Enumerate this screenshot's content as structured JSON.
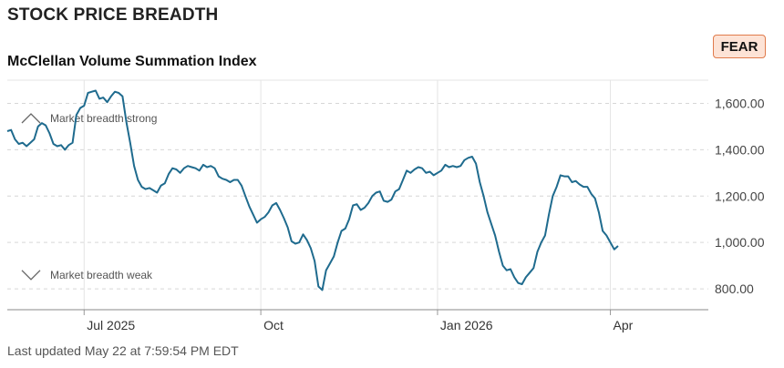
{
  "header": {
    "title": "STOCK PRICE BREADTH"
  },
  "badge": {
    "label": "FEAR",
    "border_color": "#e07b4c",
    "background": "#fde3d6"
  },
  "footer": {
    "updated": "Last updated May 22 at 7:59:54 PM EDT"
  },
  "chart_data": {
    "type": "line",
    "title": "McClellan Volume Summation Index",
    "xlabel": "",
    "ylabel": "",
    "ylim": [
      710,
      1700
    ],
    "y_ticks": [
      800,
      1000,
      1200,
      1400,
      1600
    ],
    "y_tick_labels": [
      "800.00",
      "1,000.00",
      "1,200.00",
      "1,400.00",
      "1,600.00"
    ],
    "x_ticks": [
      {
        "label": "Jul 2025",
        "date": "2025-07-01"
      },
      {
        "label": "Oct",
        "date": "2025-10-01"
      },
      {
        "label": "Jan 2026",
        "date": "2026-01-01"
      },
      {
        "label": "Apr",
        "date": "2026-04-01"
      }
    ],
    "xlim": [
      "2025-05-22",
      "2026-05-22"
    ],
    "grid": true,
    "line_color": "#1f6b8e",
    "annotations": [
      {
        "label": "Market breadth strong",
        "icon": "chevron-up-icon",
        "level": 1535
      },
      {
        "label": "Market breadth weak",
        "icon": "chevron-down-icon",
        "level": 860
      }
    ],
    "series": [
      {
        "points": [
          [
            "2025-05-22",
            1480
          ],
          [
            "2025-05-24",
            1485
          ],
          [
            "2025-05-26",
            1445
          ],
          [
            "2025-05-28",
            1425
          ],
          [
            "2025-05-30",
            1430
          ],
          [
            "2025-06-01",
            1415
          ],
          [
            "2025-06-03",
            1430
          ],
          [
            "2025-06-05",
            1445
          ],
          [
            "2025-06-07",
            1500
          ],
          [
            "2025-06-09",
            1515
          ],
          [
            "2025-06-11",
            1505
          ],
          [
            "2025-06-13",
            1470
          ],
          [
            "2025-06-15",
            1425
          ],
          [
            "2025-06-17",
            1415
          ],
          [
            "2025-06-19",
            1420
          ],
          [
            "2025-06-21",
            1400
          ],
          [
            "2025-06-23",
            1420
          ],
          [
            "2025-06-25",
            1430
          ],
          [
            "2025-06-27",
            1550
          ],
          [
            "2025-06-29",
            1580
          ],
          [
            "2025-07-01",
            1590
          ],
          [
            "2025-07-03",
            1645
          ],
          [
            "2025-07-05",
            1650
          ],
          [
            "2025-07-07",
            1655
          ],
          [
            "2025-07-09",
            1620
          ],
          [
            "2025-07-11",
            1625
          ],
          [
            "2025-07-13",
            1605
          ],
          [
            "2025-07-15",
            1630
          ],
          [
            "2025-07-17",
            1650
          ],
          [
            "2025-07-19",
            1645
          ],
          [
            "2025-07-21",
            1630
          ],
          [
            "2025-07-23",
            1520
          ],
          [
            "2025-07-25",
            1430
          ],
          [
            "2025-07-27",
            1330
          ],
          [
            "2025-07-29",
            1270
          ],
          [
            "2025-07-31",
            1240
          ],
          [
            "2025-08-02",
            1230
          ],
          [
            "2025-08-04",
            1235
          ],
          [
            "2025-08-06",
            1225
          ],
          [
            "2025-08-08",
            1215
          ],
          [
            "2025-08-10",
            1245
          ],
          [
            "2025-08-12",
            1255
          ],
          [
            "2025-08-14",
            1295
          ],
          [
            "2025-08-16",
            1320
          ],
          [
            "2025-08-18",
            1315
          ],
          [
            "2025-08-20",
            1300
          ],
          [
            "2025-08-22",
            1320
          ],
          [
            "2025-08-24",
            1330
          ],
          [
            "2025-08-26",
            1325
          ],
          [
            "2025-08-28",
            1320
          ],
          [
            "2025-08-30",
            1310
          ],
          [
            "2025-09-01",
            1335
          ],
          [
            "2025-09-03",
            1325
          ],
          [
            "2025-09-05",
            1330
          ],
          [
            "2025-09-07",
            1320
          ],
          [
            "2025-09-09",
            1285
          ],
          [
            "2025-09-11",
            1275
          ],
          [
            "2025-09-13",
            1270
          ],
          [
            "2025-09-15",
            1260
          ],
          [
            "2025-09-17",
            1270
          ],
          [
            "2025-09-19",
            1270
          ],
          [
            "2025-09-21",
            1245
          ],
          [
            "2025-09-23",
            1200
          ],
          [
            "2025-09-25",
            1155
          ],
          [
            "2025-09-27",
            1120
          ],
          [
            "2025-09-29",
            1085
          ],
          [
            "2025-10-01",
            1100
          ],
          [
            "2025-10-03",
            1110
          ],
          [
            "2025-10-05",
            1130
          ],
          [
            "2025-10-07",
            1160
          ],
          [
            "2025-10-09",
            1170
          ],
          [
            "2025-10-11",
            1140
          ],
          [
            "2025-10-13",
            1105
          ],
          [
            "2025-10-15",
            1065
          ],
          [
            "2025-10-17",
            1005
          ],
          [
            "2025-10-19",
            995
          ],
          [
            "2025-10-21",
            1000
          ],
          [
            "2025-10-23",
            1035
          ],
          [
            "2025-10-25",
            1010
          ],
          [
            "2025-10-27",
            975
          ],
          [
            "2025-10-29",
            920
          ],
          [
            "2025-10-31",
            810
          ],
          [
            "2025-11-02",
            795
          ],
          [
            "2025-11-04",
            880
          ],
          [
            "2025-11-06",
            910
          ],
          [
            "2025-11-08",
            940
          ],
          [
            "2025-11-10",
            1000
          ],
          [
            "2025-11-12",
            1050
          ],
          [
            "2025-11-14",
            1060
          ],
          [
            "2025-11-16",
            1100
          ],
          [
            "2025-11-18",
            1160
          ],
          [
            "2025-11-20",
            1165
          ],
          [
            "2025-11-22",
            1140
          ],
          [
            "2025-11-24",
            1150
          ],
          [
            "2025-11-26",
            1170
          ],
          [
            "2025-11-28",
            1200
          ],
          [
            "2025-11-30",
            1215
          ],
          [
            "2025-12-02",
            1220
          ],
          [
            "2025-12-04",
            1180
          ],
          [
            "2025-12-06",
            1175
          ],
          [
            "2025-12-08",
            1185
          ],
          [
            "2025-12-10",
            1220
          ],
          [
            "2025-12-12",
            1230
          ],
          [
            "2025-12-14",
            1270
          ],
          [
            "2025-12-16",
            1310
          ],
          [
            "2025-12-18",
            1300
          ],
          [
            "2025-12-20",
            1315
          ],
          [
            "2025-12-22",
            1325
          ],
          [
            "2025-12-24",
            1320
          ],
          [
            "2025-12-26",
            1300
          ],
          [
            "2025-12-28",
            1305
          ],
          [
            "2025-12-30",
            1290
          ],
          [
            "2026-01-01",
            1300
          ],
          [
            "2026-01-03",
            1310
          ],
          [
            "2026-01-05",
            1335
          ],
          [
            "2026-01-07",
            1325
          ],
          [
            "2026-01-09",
            1330
          ],
          [
            "2026-01-11",
            1325
          ],
          [
            "2026-01-13",
            1330
          ],
          [
            "2026-01-15",
            1355
          ],
          [
            "2026-01-17",
            1365
          ],
          [
            "2026-01-19",
            1370
          ],
          [
            "2026-01-21",
            1340
          ],
          [
            "2026-01-23",
            1260
          ],
          [
            "2026-01-25",
            1200
          ],
          [
            "2026-01-27",
            1130
          ],
          [
            "2026-01-29",
            1080
          ],
          [
            "2026-01-31",
            1030
          ],
          [
            "2026-02-02",
            960
          ],
          [
            "2026-02-04",
            900
          ],
          [
            "2026-02-06",
            880
          ],
          [
            "2026-02-08",
            885
          ],
          [
            "2026-02-10",
            850
          ],
          [
            "2026-02-12",
            825
          ],
          [
            "2026-02-14",
            820
          ],
          [
            "2026-02-16",
            850
          ],
          [
            "2026-02-18",
            870
          ],
          [
            "2026-02-20",
            890
          ],
          [
            "2026-02-22",
            960
          ],
          [
            "2026-02-24",
            1000
          ],
          [
            "2026-02-26",
            1030
          ],
          [
            "2026-02-28",
            1120
          ],
          [
            "2026-03-02",
            1200
          ],
          [
            "2026-03-04",
            1240
          ],
          [
            "2026-03-06",
            1290
          ],
          [
            "2026-03-08",
            1285
          ],
          [
            "2026-03-10",
            1285
          ],
          [
            "2026-03-12",
            1260
          ],
          [
            "2026-03-14",
            1265
          ],
          [
            "2026-03-16",
            1250
          ],
          [
            "2026-03-18",
            1240
          ],
          [
            "2026-03-20",
            1240
          ],
          [
            "2026-03-22",
            1210
          ],
          [
            "2026-03-24",
            1190
          ],
          [
            "2026-03-26",
            1130
          ],
          [
            "2026-03-28",
            1050
          ],
          [
            "2026-03-30",
            1030
          ],
          [
            "2026-04-01",
            1000
          ],
          [
            "2026-04-03",
            970
          ],
          [
            "2026-04-05",
            985
          ]
        ]
      }
    ]
  }
}
